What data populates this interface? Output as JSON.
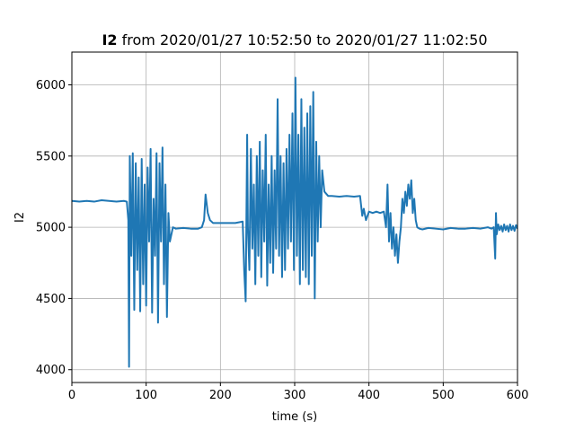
{
  "chart_data": {
    "type": "line",
    "title_bold": "I2",
    "title_rest": " from 2020/01/27 10:52:50 to 2020/01/27 11:02:50",
    "xlabel": "time (s)",
    "ylabel": "I2",
    "xlim": [
      0,
      600
    ],
    "ylim": [
      3910,
      6230
    ],
    "xticks": [
      0,
      100,
      200,
      300,
      400,
      500,
      600
    ],
    "yticks": [
      4000,
      4500,
      5000,
      5500,
      6000
    ],
    "grid": true,
    "line_color": "#1f77b4",
    "series": [
      {
        "x": [
          0,
          10,
          20,
          30,
          40,
          50,
          60,
          70,
          74,
          76,
          77,
          78,
          80,
          82,
          84,
          86,
          88,
          90,
          92,
          94,
          96,
          98,
          100,
          102,
          104,
          106,
          108,
          110,
          112,
          114,
          116,
          118,
          120,
          122,
          124,
          126,
          128,
          130,
          132,
          136,
          140,
          150,
          160,
          170,
          175,
          178,
          180,
          183,
          186,
          190,
          200,
          210,
          220,
          230,
          232,
          234,
          236,
          237,
          239,
          241,
          243,
          245,
          247,
          249,
          251,
          253,
          255,
          257,
          259,
          261,
          263,
          265,
          267,
          269,
          271,
          273,
          275,
          277,
          279,
          281,
          283,
          285,
          287,
          289,
          291,
          293,
          295,
          297,
          299,
          301,
          303,
          305,
          307,
          309,
          311,
          313,
          315,
          317,
          319,
          321,
          323,
          325,
          327,
          329,
          331,
          333,
          335,
          337,
          340,
          345,
          350,
          360,
          370,
          380,
          388,
          391,
          393,
          396,
          400,
          405,
          410,
          415,
          420,
          423,
          425,
          427,
          429,
          431,
          433,
          435,
          437,
          439,
          441,
          443,
          445,
          447,
          449,
          451,
          453,
          455,
          457,
          459,
          461,
          463,
          465,
          468,
          472,
          480,
          490,
          500,
          510,
          520,
          530,
          540,
          550,
          560,
          565,
          568,
          570,
          571,
          572,
          574,
          576,
          578,
          580,
          582,
          584,
          586,
          588,
          590,
          592,
          594,
          596,
          598,
          600
        ],
        "y": [
          5185,
          5180,
          5185,
          5180,
          5190,
          5185,
          5180,
          5185,
          5180,
          5050,
          4020,
          5500,
          4800,
          5520,
          4420,
          5450,
          4700,
          5350,
          4410,
          5480,
          4600,
          5300,
          4450,
          5420,
          4900,
          5550,
          4400,
          5200,
          4800,
          5520,
          4330,
          5450,
          4900,
          5560,
          4600,
          5300,
          4370,
          5100,
          4900,
          5000,
          4990,
          4995,
          4990,
          4990,
          5000,
          5050,
          5230,
          5100,
          5050,
          5030,
          5030,
          5030,
          5030,
          5040,
          4700,
          4480,
          5650,
          5000,
          4700,
          5550,
          4850,
          5300,
          4600,
          5500,
          4800,
          5600,
          4650,
          5400,
          4900,
          5650,
          4590,
          5300,
          4750,
          5500,
          4680,
          5400,
          4850,
          5900,
          4800,
          5500,
          4650,
          5450,
          4700,
          5550,
          4850,
          5650,
          4900,
          5800,
          4700,
          6050,
          4800,
          5650,
          4600,
          5900,
          4700,
          5700,
          4650,
          5800,
          4600,
          5850,
          4800,
          5950,
          4500,
          5600,
          4900,
          5500,
          5000,
          5400,
          5250,
          5220,
          5220,
          5215,
          5220,
          5215,
          5220,
          5080,
          5130,
          5050,
          5110,
          5100,
          5110,
          5100,
          5110,
          5000,
          5300,
          4900,
          5100,
          4850,
          5000,
          4800,
          4950,
          4750,
          4900,
          5000,
          5200,
          5100,
          5250,
          5150,
          5300,
          5200,
          5330,
          5100,
          5200,
          5050,
          5000,
          4990,
          4985,
          4995,
          4990,
          4985,
          4995,
          4990,
          4990,
          4995,
          4990,
          5000,
          4990,
          5000,
          4780,
          5100,
          4950,
          5020,
          4980,
          5010,
          4970,
          5020,
          4980,
          5010,
          4970,
          5020,
          4980,
          5010,
          4975,
          5015,
          4990
        ]
      }
    ]
  }
}
